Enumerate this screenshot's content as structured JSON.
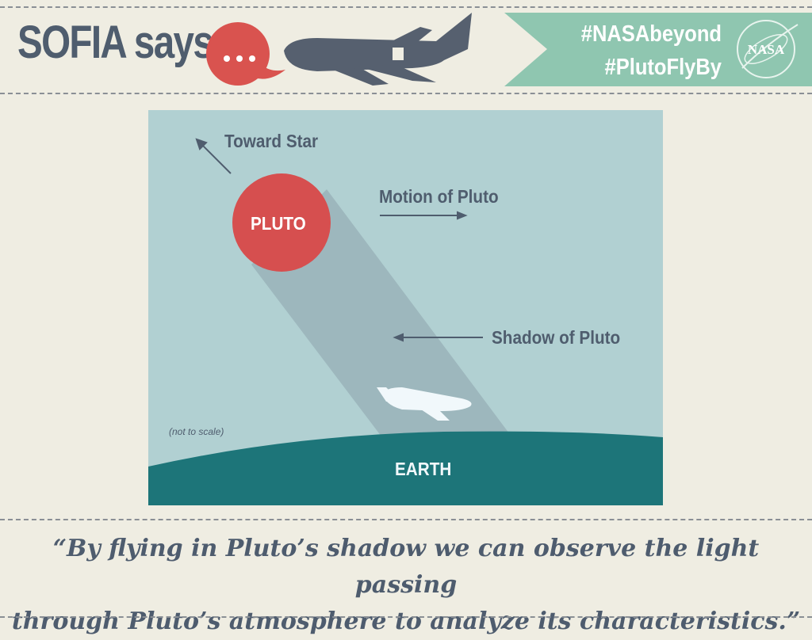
{
  "header": {
    "title": "SOFIA says",
    "hashtags": [
      "#NASAbeyond",
      "#PlutoFlyBy"
    ],
    "logo_text": "NASA"
  },
  "diagram": {
    "toward_star": "Toward Star",
    "pluto": "PLUTO",
    "motion": "Motion of Pluto",
    "shadow": "Shadow of Pluto",
    "scale_note": "(not to scale)",
    "earth": "EARTH"
  },
  "quote": {
    "line1": "“By flying in Pluto’s shadow we can observe the light passing",
    "line2": "through Pluto’s atmosphere to analyze its characteristics.”"
  },
  "colors": {
    "background": "#efede2",
    "text": "#4f5d6e",
    "pluto": "#d64f4f",
    "sky": "#b1d0d2",
    "shadow": "#9db7bd",
    "earth": "#1d7579",
    "banner": "#8fc6b0"
  }
}
